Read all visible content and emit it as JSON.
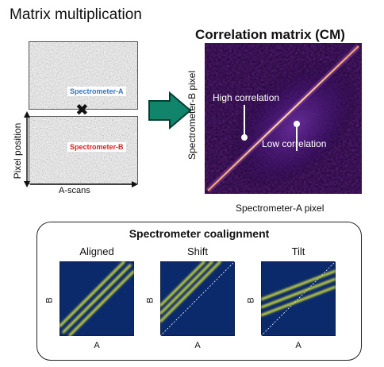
{
  "title": "Matrix multiplication",
  "spectrometer_a_label": "Spectrometer-A",
  "spectrometer_b_label": "Spectrometer-B",
  "multiply_symbol": "✖",
  "pixel_position_label": "Pixel position",
  "ascans_label": "A-scans",
  "correlation_matrix": {
    "title": "Correlation matrix (CM)",
    "y_label": "Spectrometer-B pixel",
    "x_label": "Spectrometer-A pixel",
    "high_label": "High correlation",
    "low_label": "Low correlation"
  },
  "coalignment": {
    "title": "Spectrometer coalignment",
    "axis_b": "B",
    "axis_a": "A",
    "panels": [
      {
        "title": "Aligned"
      },
      {
        "title": "Shift"
      },
      {
        "title": "Tilt"
      }
    ]
  },
  "colors": {
    "spec_a": "#2e75c8",
    "spec_b": "#e01b1b",
    "arrow_fill": "#11846c",
    "arrow_stroke": "#063f32",
    "mini_bg": "#0b2a6b",
    "band": "#d8e23a",
    "cm_bg": "#1c0433",
    "cm_diag": "#f2a06a"
  },
  "icons": {
    "arrow": "right-arrow-icon",
    "multiply": "multiply-icon"
  }
}
